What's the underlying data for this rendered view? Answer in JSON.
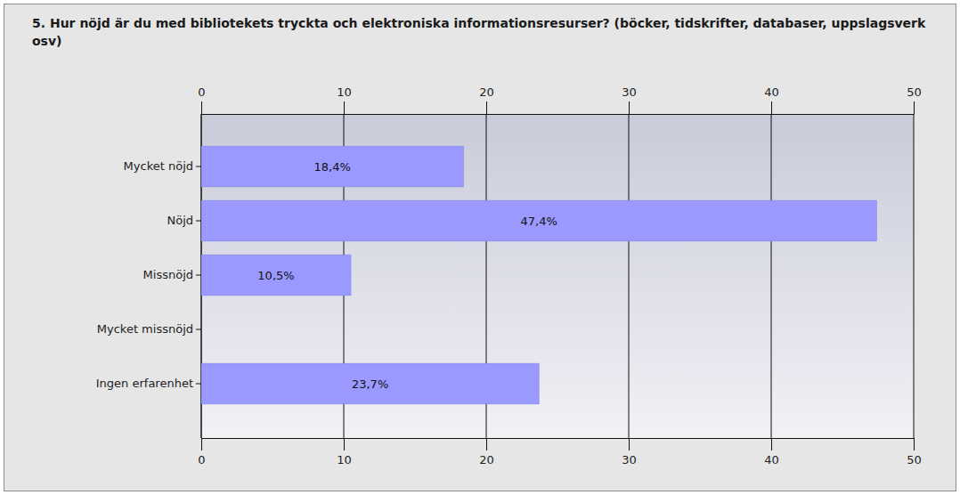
{
  "chart_data": {
    "type": "bar",
    "orientation": "horizontal",
    "title": "5. Hur nöjd är du med bibliotekets tryckta och elektroniska informationsresurser? (böcker, tidskrifter, databaser, uppslagsverk osv)",
    "categories": [
      "Mycket nöjd",
      "Nöjd",
      "Missnöjd",
      "Mycket missnöjd",
      "Ingen erfarenhet"
    ],
    "values": [
      18.4,
      47.4,
      10.5,
      null,
      23.7
    ],
    "value_labels": [
      "18,4%",
      "47,4%",
      "10,5%",
      null,
      "23,7%"
    ],
    "data_labels": true,
    "color": "#9999ff",
    "xlim": [
      0,
      50
    ],
    "xticks": [
      0,
      10,
      20,
      30,
      40,
      50
    ],
    "grid": true
  }
}
